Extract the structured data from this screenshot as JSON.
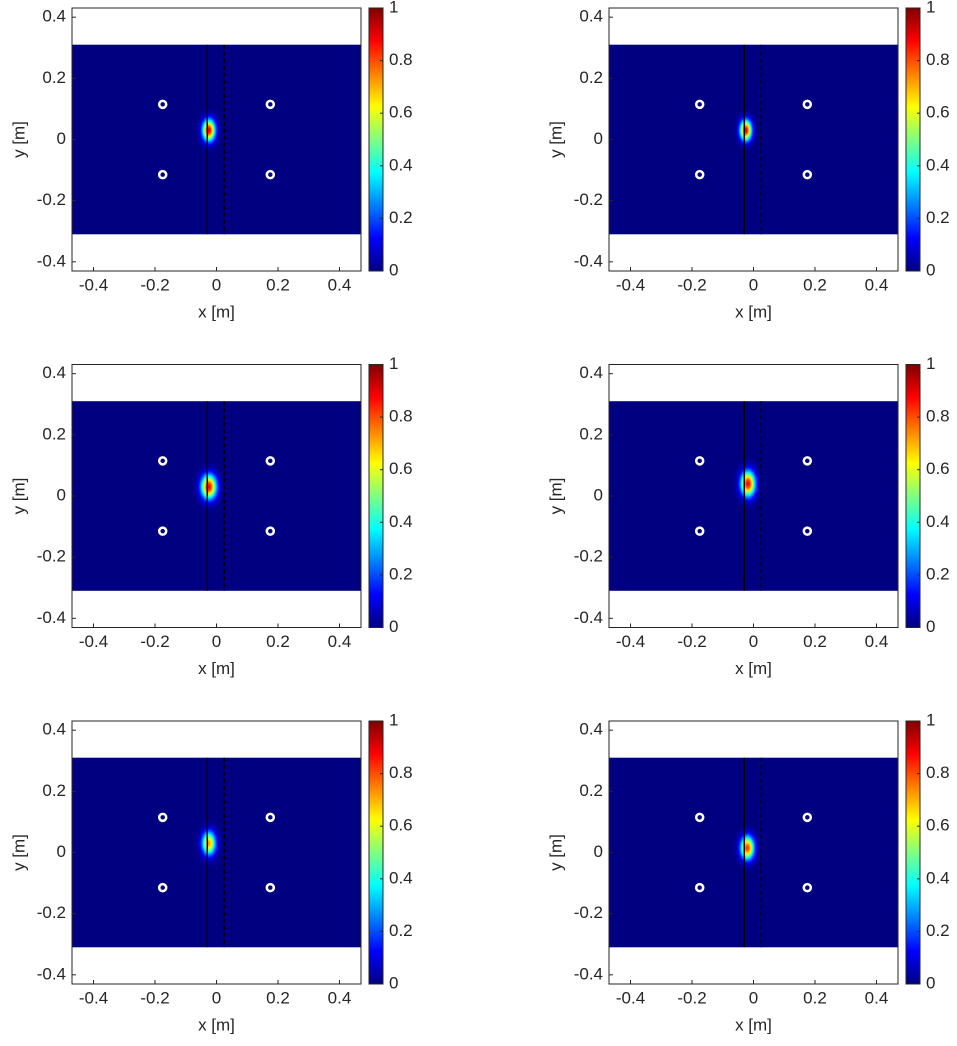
{
  "chart_data": [
    {
      "type": "heatmap",
      "xlabel": "x [m]",
      "ylabel": "y [m]",
      "xlim": [
        -0.47,
        0.47
      ],
      "ylim": [
        -0.43,
        0.43
      ],
      "xticks": [
        -0.4,
        -0.2,
        0,
        0.2,
        0.4
      ],
      "yticks": [
        -0.4,
        -0.2,
        0,
        0.2,
        0.4
      ],
      "colormap": "jet",
      "clim": [
        0,
        1
      ],
      "cticks": [
        0,
        0.2,
        0.4,
        0.6,
        0.8,
        1
      ],
      "field": {
        "xlim": [
          -0.47,
          0.47
        ],
        "ylim": [
          -0.31,
          0.31
        ]
      },
      "peak": {
        "x": -0.025,
        "y": 0.03,
        "value": 0.9,
        "sigma": [
          0.014,
          0.024
        ]
      },
      "sensors": [
        {
          "x": -0.175,
          "y": 0.115
        },
        {
          "x": 0.175,
          "y": 0.115
        },
        {
          "x": -0.175,
          "y": -0.115
        },
        {
          "x": 0.175,
          "y": -0.115
        }
      ],
      "lines": [
        {
          "x": -0.03,
          "style": "solid"
        },
        {
          "x": 0.025,
          "style": "dashed"
        }
      ]
    },
    {
      "type": "heatmap",
      "xlabel": "x [m]",
      "ylabel": "y [m]",
      "xlim": [
        -0.47,
        0.47
      ],
      "ylim": [
        -0.43,
        0.43
      ],
      "xticks": [
        -0.4,
        -0.2,
        0,
        0.2,
        0.4
      ],
      "yticks": [
        -0.4,
        -0.2,
        0,
        0.2,
        0.4
      ],
      "colormap": "jet",
      "clim": [
        0,
        1
      ],
      "cticks": [
        0,
        0.2,
        0.4,
        0.6,
        0.8,
        1
      ],
      "field": {
        "xlim": [
          -0.47,
          0.47
        ],
        "ylim": [
          -0.31,
          0.31
        ]
      },
      "peak": {
        "x": -0.025,
        "y": 0.03,
        "value": 0.9,
        "sigma": [
          0.013,
          0.023
        ]
      },
      "sensors": [
        {
          "x": -0.175,
          "y": 0.115
        },
        {
          "x": 0.175,
          "y": 0.115
        },
        {
          "x": -0.175,
          "y": -0.115
        },
        {
          "x": 0.175,
          "y": -0.115
        }
      ],
      "lines": [
        {
          "x": -0.03,
          "style": "solid"
        },
        {
          "x": 0.025,
          "style": "dashed"
        }
      ]
    },
    {
      "type": "heatmap",
      "xlabel": "x [m]",
      "ylabel": "y [m]",
      "xlim": [
        -0.47,
        0.47
      ],
      "ylim": [
        -0.43,
        0.43
      ],
      "xticks": [
        -0.4,
        -0.2,
        0,
        0.2,
        0.4
      ],
      "yticks": [
        -0.4,
        -0.2,
        0,
        0.2,
        0.4
      ],
      "colormap": "jet",
      "clim": [
        0,
        1
      ],
      "cticks": [
        0,
        0.2,
        0.4,
        0.6,
        0.8,
        1
      ],
      "field": {
        "xlim": [
          -0.47,
          0.47
        ],
        "ylim": [
          -0.31,
          0.31
        ]
      },
      "peak": {
        "x": -0.025,
        "y": 0.03,
        "value": 0.88,
        "sigma": [
          0.017,
          0.027
        ]
      },
      "sensors": [
        {
          "x": -0.175,
          "y": 0.115
        },
        {
          "x": 0.175,
          "y": 0.115
        },
        {
          "x": -0.175,
          "y": -0.115
        },
        {
          "x": 0.175,
          "y": -0.115
        }
      ],
      "lines": [
        {
          "x": -0.03,
          "style": "solid"
        },
        {
          "x": 0.025,
          "style": "dashed"
        }
      ]
    },
    {
      "type": "heatmap",
      "xlabel": "x [m]",
      "ylabel": "y [m]",
      "xlim": [
        -0.47,
        0.47
      ],
      "ylim": [
        -0.43,
        0.43
      ],
      "xticks": [
        -0.4,
        -0.2,
        0,
        0.2,
        0.4
      ],
      "yticks": [
        -0.4,
        -0.2,
        0,
        0.2,
        0.4
      ],
      "colormap": "jet",
      "clim": [
        0,
        1
      ],
      "cticks": [
        0,
        0.2,
        0.4,
        0.6,
        0.8,
        1
      ],
      "field": {
        "xlim": [
          -0.47,
          0.47
        ],
        "ylim": [
          -0.31,
          0.31
        ]
      },
      "peak": {
        "x": -0.018,
        "y": 0.04,
        "value": 0.88,
        "sigma": [
          0.016,
          0.028
        ]
      },
      "sensors": [
        {
          "x": -0.175,
          "y": 0.115
        },
        {
          "x": 0.175,
          "y": 0.115
        },
        {
          "x": -0.175,
          "y": -0.115
        },
        {
          "x": 0.175,
          "y": -0.115
        }
      ],
      "lines": [
        {
          "x": -0.03,
          "style": "solid"
        },
        {
          "x": 0.025,
          "style": "dashed"
        }
      ]
    },
    {
      "type": "heatmap",
      "xlabel": "x [m]",
      "ylabel": "y [m]",
      "xlim": [
        -0.47,
        0.47
      ],
      "ylim": [
        -0.43,
        0.43
      ],
      "xticks": [
        -0.4,
        -0.2,
        0,
        0.2,
        0.4
      ],
      "yticks": [
        -0.4,
        -0.2,
        0,
        0.2,
        0.4
      ],
      "colormap": "jet",
      "clim": [
        0,
        1
      ],
      "cticks": [
        0,
        0.2,
        0.4,
        0.6,
        0.8,
        1
      ],
      "field": {
        "xlim": [
          -0.47,
          0.47
        ],
        "ylim": [
          -0.31,
          0.31
        ]
      },
      "peak": {
        "x": -0.025,
        "y": 0.03,
        "value": 0.72,
        "sigma": [
          0.015,
          0.026
        ]
      },
      "sensors": [
        {
          "x": -0.175,
          "y": 0.115
        },
        {
          "x": 0.175,
          "y": 0.115
        },
        {
          "x": -0.175,
          "y": -0.115
        },
        {
          "x": 0.175,
          "y": -0.115
        }
      ],
      "lines": [
        {
          "x": -0.03,
          "style": "solid"
        },
        {
          "x": 0.025,
          "style": "dashed"
        }
      ]
    },
    {
      "type": "heatmap",
      "xlabel": "x [m]",
      "ylabel": "y [m]",
      "xlim": [
        -0.47,
        0.47
      ],
      "ylim": [
        -0.43,
        0.43
      ],
      "xticks": [
        -0.4,
        -0.2,
        0,
        0.2,
        0.4
      ],
      "yticks": [
        -0.4,
        -0.2,
        0,
        0.2,
        0.4
      ],
      "colormap": "jet",
      "clim": [
        0,
        1
      ],
      "cticks": [
        0,
        0.2,
        0.4,
        0.6,
        0.8,
        1
      ],
      "field": {
        "xlim": [
          -0.47,
          0.47
        ],
        "ylim": [
          -0.31,
          0.31
        ]
      },
      "peak": {
        "x": -0.02,
        "y": 0.015,
        "value": 0.82,
        "sigma": [
          0.015,
          0.026
        ]
      },
      "sensors": [
        {
          "x": -0.175,
          "y": 0.115
        },
        {
          "x": 0.175,
          "y": 0.115
        },
        {
          "x": -0.175,
          "y": -0.115
        },
        {
          "x": 0.175,
          "y": -0.115
        }
      ],
      "lines": [
        {
          "x": -0.03,
          "style": "solid"
        },
        {
          "x": 0.025,
          "style": "dashed"
        }
      ]
    }
  ]
}
